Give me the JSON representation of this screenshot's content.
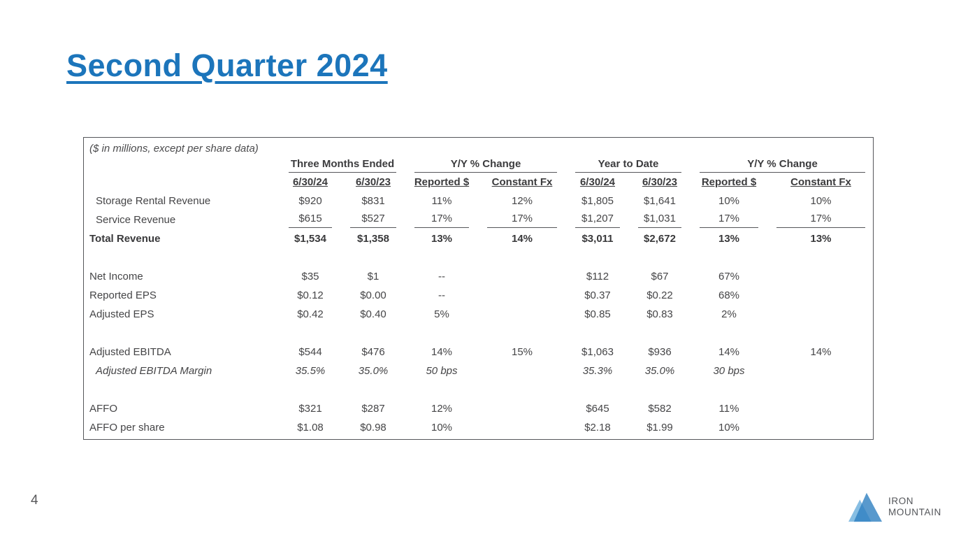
{
  "title": "Second Quarter 2024",
  "table": {
    "note": "($ in millions, except per share data)",
    "groups": [
      {
        "label": "Three Months Ended"
      },
      {
        "label": "Y/Y % Change"
      },
      {
        "label": "Year to Date"
      },
      {
        "label": "Y/Y % Change"
      }
    ],
    "subheaders": [
      "6/30/24",
      "6/30/23",
      "Reported $",
      "Constant Fx",
      "6/30/24",
      "6/30/23",
      "Reported $",
      "Constant Fx"
    ],
    "rows": [
      {
        "label": "Storage Rental Revenue",
        "indent": true,
        "values": [
          "$920",
          "$831",
          "11%",
          "12%",
          "$1,805",
          "$1,641",
          "10%",
          "10%"
        ]
      },
      {
        "label": "Service Revenue",
        "indent": true,
        "rule_below": true,
        "values": [
          "$615",
          "$527",
          "17%",
          "17%",
          "$1,207",
          "$1,031",
          "17%",
          "17%"
        ]
      },
      {
        "label": "Total Revenue",
        "bold": true,
        "values": [
          "$1,534",
          "$1,358",
          "13%",
          "14%",
          "$3,011",
          "$2,672",
          "13%",
          "13%"
        ]
      },
      {
        "spacer": true
      },
      {
        "label": "Net Income",
        "values": [
          "$35",
          "$1",
          "--",
          "",
          "$112",
          "$67",
          "67%",
          ""
        ]
      },
      {
        "label": "Reported EPS",
        "values": [
          "$0.12",
          "$0.00",
          "--",
          "",
          "$0.37",
          "$0.22",
          "68%",
          ""
        ]
      },
      {
        "label": "Adjusted EPS",
        "values": [
          "$0.42",
          "$0.40",
          "5%",
          "",
          "$0.85",
          "$0.83",
          "2%",
          ""
        ]
      },
      {
        "spacer": true
      },
      {
        "label": "Adjusted EBITDA",
        "values": [
          "$544",
          "$476",
          "14%",
          "15%",
          "$1,063",
          "$936",
          "14%",
          "14%"
        ]
      },
      {
        "label": "Adjusted EBITDA Margin",
        "indent": true,
        "italic": true,
        "values": [
          "35.5%",
          "35.0%",
          "50 bps",
          "",
          "35.3%",
          "35.0%",
          "30 bps",
          ""
        ]
      },
      {
        "spacer": true
      },
      {
        "label": "AFFO",
        "values": [
          "$321",
          "$287",
          "12%",
          "",
          "$645",
          "$582",
          "11%",
          ""
        ]
      },
      {
        "label": "AFFO per share",
        "values": [
          "$1.08",
          "$0.98",
          "10%",
          "",
          "$2.18",
          "$1.99",
          "10%",
          ""
        ]
      }
    ]
  },
  "footer": {
    "page_number": "4",
    "logo_line1": "IRON",
    "logo_line2": "MOUNTAIN"
  },
  "icons": {
    "logo": "mountain-icon"
  },
  "colors": {
    "title_blue": "#1c75bb",
    "rule_gray": "#55565a",
    "text_dark": "#454547",
    "logo_light_blue": "#5fa8da",
    "logo_dark_blue": "#2e7fc0",
    "logo_text_gray": "#54565a"
  }
}
